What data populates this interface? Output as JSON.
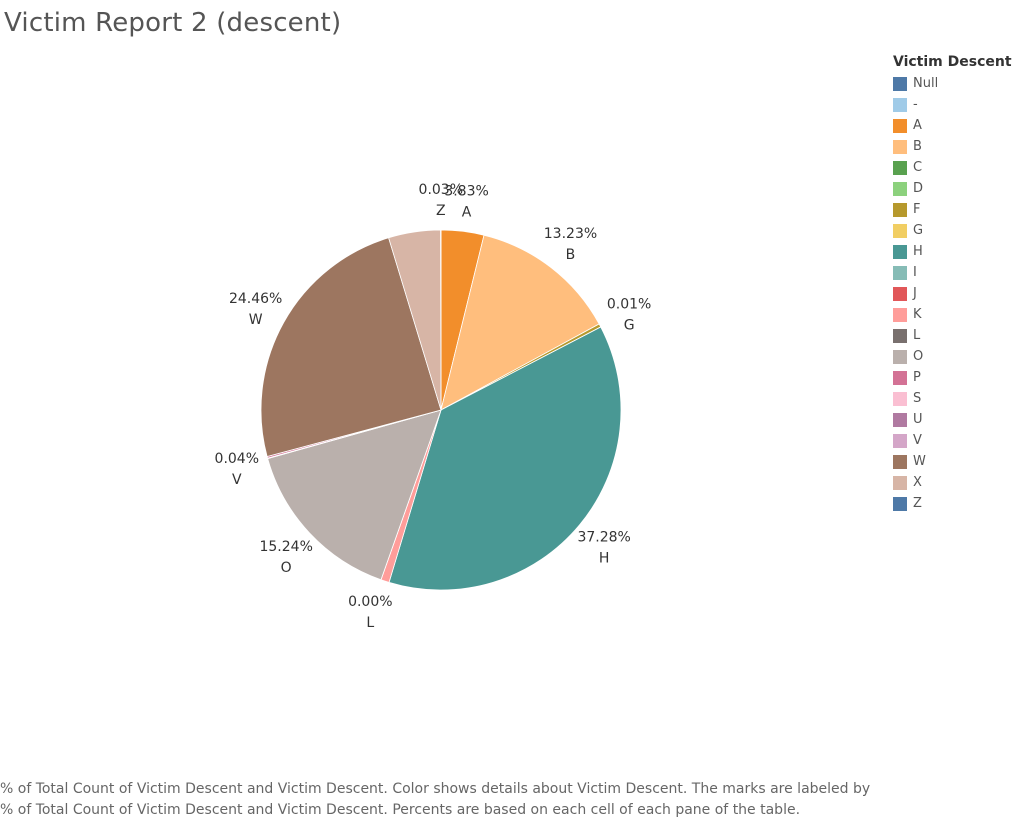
{
  "title": "Victim Report 2 (descent)",
  "legend": {
    "title": "Victim Descent",
    "items": [
      {
        "label": "Null",
        "color": "#4E79A7"
      },
      {
        "label": "-",
        "color": "#A0CBE8"
      },
      {
        "label": "A",
        "color": "#F28E2B"
      },
      {
        "label": "B",
        "color": "#FFBE7D"
      },
      {
        "label": "C",
        "color": "#59A14F"
      },
      {
        "label": "D",
        "color": "#8CD17D"
      },
      {
        "label": "F",
        "color": "#B6992D"
      },
      {
        "label": "G",
        "color": "#F1CE63"
      },
      {
        "label": "H",
        "color": "#499894"
      },
      {
        "label": "I",
        "color": "#86BCB6"
      },
      {
        "label": "J",
        "color": "#E15759"
      },
      {
        "label": "K",
        "color": "#FF9D9A"
      },
      {
        "label": "L",
        "color": "#79706E"
      },
      {
        "label": "O",
        "color": "#BAB0AC"
      },
      {
        "label": "P",
        "color": "#D37295"
      },
      {
        "label": "S",
        "color": "#FABFD2"
      },
      {
        "label": "U",
        "color": "#B07AA1"
      },
      {
        "label": "V",
        "color": "#D4A6C8"
      },
      {
        "label": "W",
        "color": "#9D7660"
      },
      {
        "label": "X",
        "color": "#D7B5A6"
      },
      {
        "label": "Z",
        "color": "#4E79A7"
      }
    ]
  },
  "chart_data": {
    "type": "pie",
    "slices": [
      {
        "category": "Null",
        "value": 0.01,
        "label": "",
        "color": "#4E79A7"
      },
      {
        "category": "A",
        "value": 3.83,
        "label": "3.83%",
        "color": "#F28E2B"
      },
      {
        "category": "B",
        "value": 13.23,
        "label": "13.23%",
        "color": "#FFBE7D"
      },
      {
        "category": "F",
        "value": 0.3,
        "label": "",
        "color": "#B6992D"
      },
      {
        "category": "G",
        "value": 0.01,
        "label": "0.01%",
        "color": "#F1CE63"
      },
      {
        "category": "H",
        "value": 37.28,
        "label": "37.28%",
        "color": "#499894"
      },
      {
        "category": "K",
        "value": 0.75,
        "label": "",
        "color": "#FF9D9A"
      },
      {
        "category": "L",
        "value": 0.0,
        "label": "0.00%",
        "color": "#79706E"
      },
      {
        "category": "O",
        "value": 15.24,
        "label": "15.24%",
        "color": "#BAB0AC"
      },
      {
        "category": "V",
        "value": 0.04,
        "label": "0.04%",
        "color": "#D4A6C8"
      },
      {
        "category": "P",
        "value": 0.15,
        "label": "",
        "color": "#D37295"
      },
      {
        "category": "W",
        "value": 24.46,
        "label": "24.46%",
        "color": "#9D7660"
      },
      {
        "category": "X",
        "value": 4.67,
        "label": "",
        "color": "#D7B5A6"
      },
      {
        "category": "Z",
        "value": 0.03,
        "label": "0.03%",
        "color": "#4E79A7"
      }
    ]
  },
  "caption": {
    "line1": "% of Total Count of Victim Descent and Victim Descent.  Color shows details about Victim Descent.  The marks are labeled by",
    "line2": "% of Total Count of Victim Descent and Victim Descent. Percents are based on each cell of each pane of the table."
  }
}
